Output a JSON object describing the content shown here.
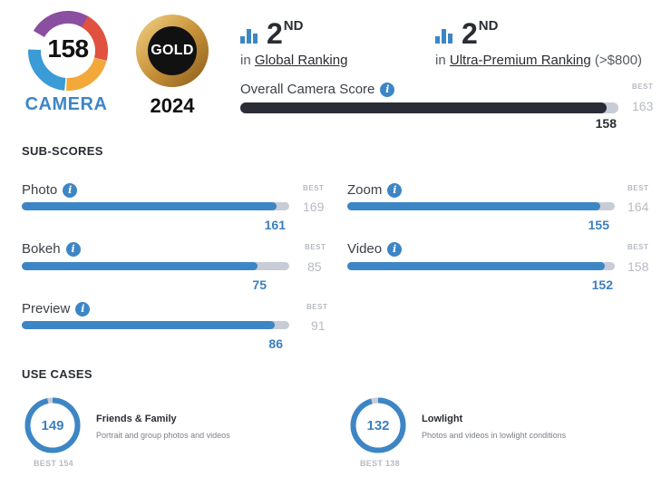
{
  "badges": {
    "camera": {
      "score": "158",
      "category": "CAMERA"
    },
    "gold": {
      "label": "GOLD",
      "year": "2024"
    }
  },
  "rankings": [
    {
      "position": "2",
      "suffix": "ND",
      "prefix": "in",
      "link": "Global Ranking",
      "extra": ""
    },
    {
      "position": "2",
      "suffix": "ND",
      "prefix": "in",
      "link": "Ultra-Premium Ranking",
      "extra": "(>$800)"
    }
  ],
  "overall": {
    "label": "Overall Camera Score",
    "best_label": "BEST",
    "value": "158",
    "best": "163",
    "value_num": 158,
    "best_num": 163
  },
  "subscores": {
    "title": "SUB-SCORES",
    "best_label": "BEST",
    "items": [
      {
        "label": "Photo",
        "value": "161",
        "best": "169",
        "value_num": 161,
        "best_num": 169
      },
      {
        "label": "Zoom",
        "value": "155",
        "best": "164",
        "value_num": 155,
        "best_num": 164
      },
      {
        "label": "Bokeh",
        "value": "75",
        "best": "85",
        "value_num": 75,
        "best_num": 85
      },
      {
        "label": "Video",
        "value": "152",
        "best": "158",
        "value_num": 152,
        "best_num": 158
      },
      {
        "label": "Preview",
        "value": "86",
        "best": "91",
        "value_num": 86,
        "best_num": 91
      }
    ]
  },
  "use_cases": {
    "title": "USE CASES",
    "items": [
      {
        "score": "149",
        "best": "BEST 154",
        "title": "Friends & Family",
        "description": "Portrait and group photos and videos",
        "value_num": 149,
        "best_num": 154
      },
      {
        "score": "132",
        "best": "BEST 138",
        "title": "Lowlight",
        "description": "Photos and videos in lowlight conditions",
        "value_num": 132,
        "best_num": 138
      }
    ]
  },
  "colors": {
    "accent": "#3d86c6",
    "dark_bar": "#2a2d38",
    "track": "#c7ccd6",
    "muted": "#b6bac2"
  }
}
